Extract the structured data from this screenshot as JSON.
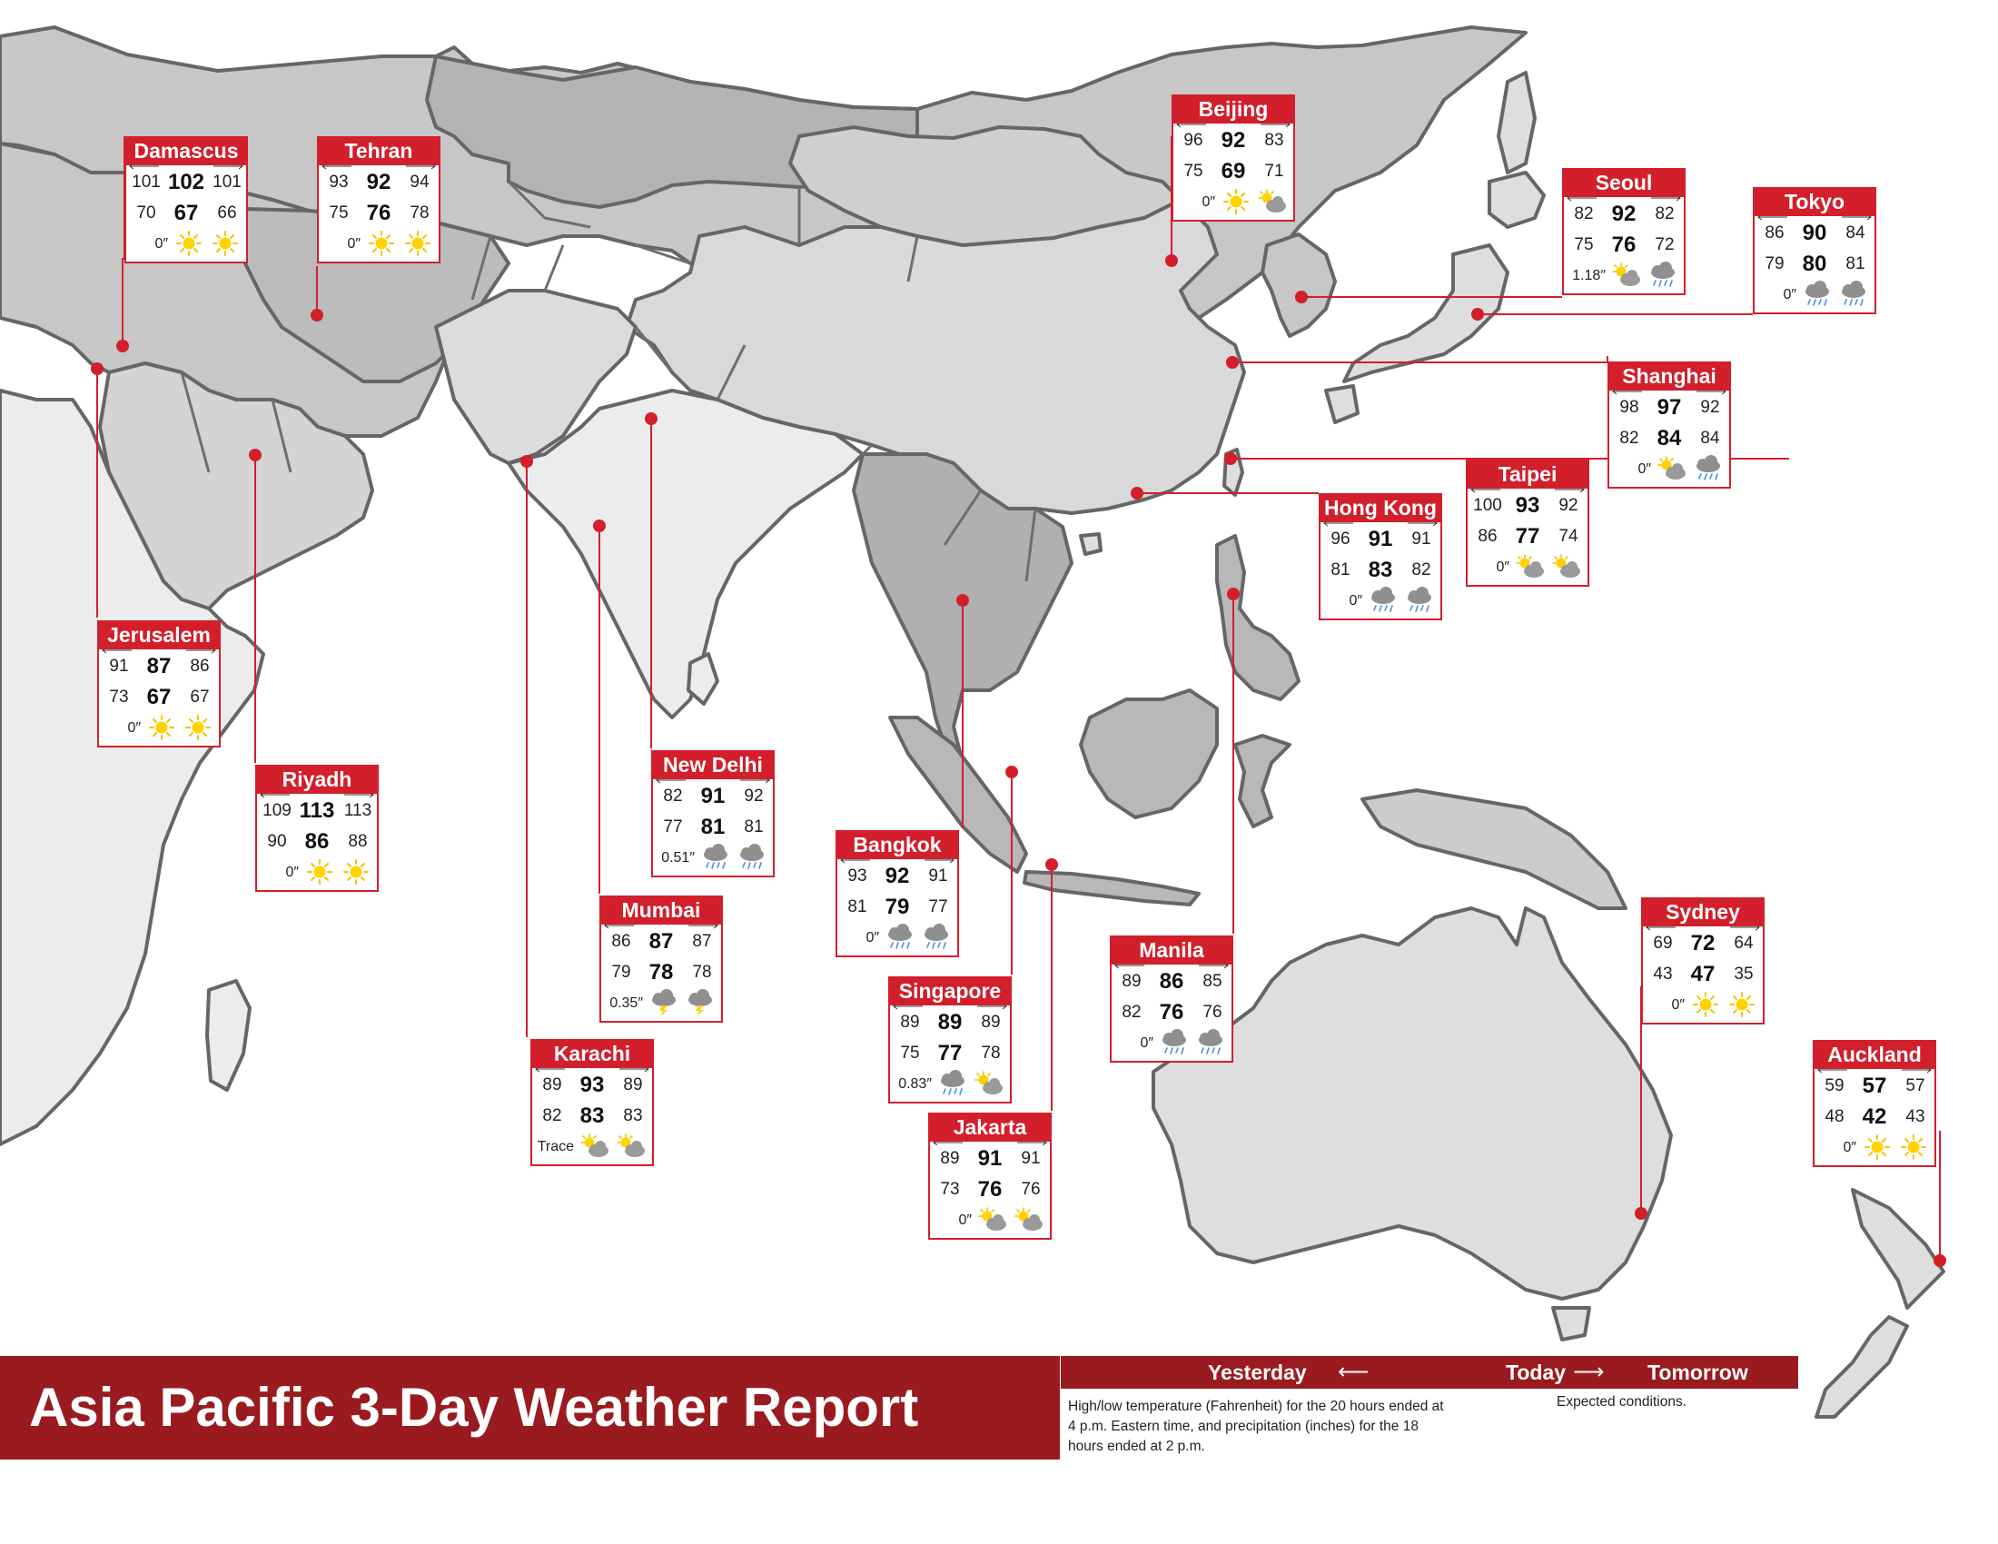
{
  "report": {
    "title": "Asia Pacific 3-Day Weather Report",
    "legend": {
      "yesterday": "Yesterday",
      "today": "Today",
      "tomorrow": "Tomorrow",
      "note_left": "High/low temperature (Fahrenheit) for the 20 hours ended at 4 p.m. Eastern time, and precipitation (inches) for the 18 hours ended at 2 p.m.",
      "note_right": "Expected conditions."
    },
    "colors": {
      "accent": "#d21f2b",
      "banner": "#9a1b1f",
      "land_dark": "#a9a9a9",
      "land_mid": "#c7c7c7",
      "land_light": "#dedede",
      "land_pale": "#ececec"
    }
  },
  "cities": [
    {
      "name": "Damascus",
      "highs": [
        "101",
        "102",
        "101"
      ],
      "lows": [
        "70",
        "67",
        "66"
      ],
      "precip": "0″",
      "icons": [
        "sun-icon",
        "sun-icon"
      ]
    },
    {
      "name": "Tehran",
      "highs": [
        "93",
        "92",
        "94"
      ],
      "lows": [
        "75",
        "76",
        "78"
      ],
      "precip": "0″",
      "icons": [
        "sun-icon",
        "sun-icon"
      ]
    },
    {
      "name": "Beijing",
      "highs": [
        "96",
        "92",
        "83"
      ],
      "lows": [
        "75",
        "69",
        "71"
      ],
      "precip": "0″",
      "icons": [
        "sun-icon",
        "partly-cloudy-icon"
      ]
    },
    {
      "name": "Seoul",
      "highs": [
        "82",
        "92",
        "82"
      ],
      "lows": [
        "75",
        "76",
        "72"
      ],
      "precip": "1.18″",
      "icons": [
        "partly-cloudy-icon",
        "rain-icon"
      ]
    },
    {
      "name": "Tokyo",
      "highs": [
        "86",
        "90",
        "84"
      ],
      "lows": [
        "79",
        "80",
        "81"
      ],
      "precip": "0″",
      "icons": [
        "rain-icon",
        "rain-icon"
      ]
    },
    {
      "name": "Shanghai",
      "highs": [
        "98",
        "97",
        "92"
      ],
      "lows": [
        "82",
        "84",
        "84"
      ],
      "precip": "0″",
      "icons": [
        "partly-cloudy-icon",
        "rain-icon"
      ]
    },
    {
      "name": "Taipei",
      "highs": [
        "100",
        "93",
        "92"
      ],
      "lows": [
        "86",
        "77",
        "74"
      ],
      "precip": "0″",
      "icons": [
        "partly-cloudy-icon",
        "partly-cloudy-icon"
      ]
    },
    {
      "name": "Hong Kong",
      "highs": [
        "96",
        "91",
        "91"
      ],
      "lows": [
        "81",
        "83",
        "82"
      ],
      "precip": "0″",
      "icons": [
        "rain-icon",
        "rain-icon"
      ]
    },
    {
      "name": "Jerusalem",
      "highs": [
        "91",
        "87",
        "86"
      ],
      "lows": [
        "73",
        "67",
        "67"
      ],
      "precip": "0″",
      "icons": [
        "sun-icon",
        "sun-icon"
      ]
    },
    {
      "name": "Riyadh",
      "highs": [
        "109",
        "113",
        "113"
      ],
      "lows": [
        "90",
        "86",
        "88"
      ],
      "precip": "0″",
      "icons": [
        "sun-icon",
        "sun-icon"
      ]
    },
    {
      "name": "New Delhi",
      "highs": [
        "82",
        "91",
        "92"
      ],
      "lows": [
        "77",
        "81",
        "81"
      ],
      "precip": "0.51″",
      "icons": [
        "rain-icon",
        "rain-icon"
      ]
    },
    {
      "name": "Bangkok",
      "highs": [
        "93",
        "92",
        "91"
      ],
      "lows": [
        "81",
        "79",
        "77"
      ],
      "precip": "0″",
      "icons": [
        "rain-icon",
        "rain-icon"
      ]
    },
    {
      "name": "Mumbai",
      "highs": [
        "86",
        "87",
        "87"
      ],
      "lows": [
        "79",
        "78",
        "78"
      ],
      "precip": "0.35″",
      "icons": [
        "thunderstorm-icon",
        "thunderstorm-icon"
      ]
    },
    {
      "name": "Singapore",
      "highs": [
        "89",
        "89",
        "89"
      ],
      "lows": [
        "75",
        "77",
        "78"
      ],
      "precip": "0.83″",
      "icons": [
        "rain-icon",
        "partly-cloudy-icon"
      ]
    },
    {
      "name": "Manila",
      "highs": [
        "89",
        "86",
        "85"
      ],
      "lows": [
        "82",
        "76",
        "76"
      ],
      "precip": "0″",
      "icons": [
        "rain-icon",
        "rain-icon"
      ]
    },
    {
      "name": "Sydney",
      "highs": [
        "69",
        "72",
        "64"
      ],
      "lows": [
        "43",
        "47",
        "35"
      ],
      "precip": "0″",
      "icons": [
        "sun-icon",
        "sun-icon"
      ]
    },
    {
      "name": "Karachi",
      "highs": [
        "89",
        "93",
        "89"
      ],
      "lows": [
        "82",
        "83",
        "83"
      ],
      "precip": "Trace",
      "icons": [
        "partly-cloudy-icon",
        "partly-cloudy-icon"
      ]
    },
    {
      "name": "Jakarta",
      "highs": [
        "89",
        "91",
        "91"
      ],
      "lows": [
        "73",
        "76",
        "76"
      ],
      "precip": "0″",
      "icons": [
        "partly-cloudy-icon",
        "partly-cloudy-icon"
      ]
    },
    {
      "name": "Auckland",
      "highs": [
        "59",
        "57",
        "57"
      ],
      "lows": [
        "48",
        "42",
        "43"
      ],
      "precip": "0″",
      "icons": [
        "sun-icon",
        "sun-icon"
      ]
    }
  ]
}
